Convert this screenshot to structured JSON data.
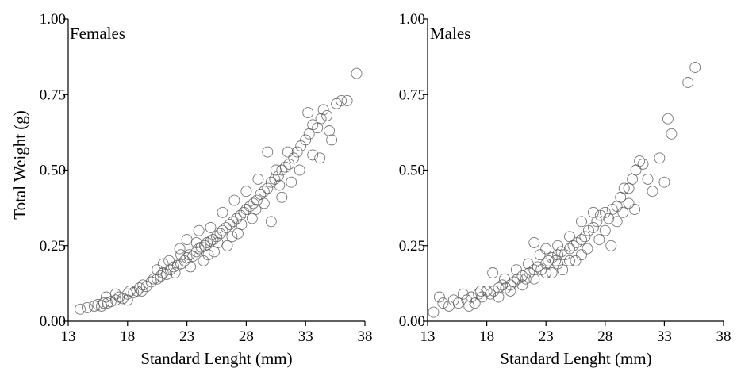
{
  "chart_data": [
    {
      "type": "scatter",
      "panel_label": "Females",
      "xlabel": "Standard Lenght (mm)",
      "ylabel": "Total Weight (g)",
      "xlim": [
        13,
        38
      ],
      "ylim": [
        0,
        1
      ],
      "xticks": [
        13,
        18,
        23,
        28,
        33,
        38
      ],
      "yticks": [
        "0.00",
        "0.25",
        "0.50",
        "0.75",
        "1.00"
      ],
      "ytick_values": [
        0,
        0.25,
        0.5,
        0.75,
        1.0
      ],
      "marker": "open-circle",
      "points": [
        [
          14.0,
          0.04
        ],
        [
          14.6,
          0.045
        ],
        [
          15.2,
          0.05
        ],
        [
          15.5,
          0.055
        ],
        [
          15.8,
          0.05
        ],
        [
          16.0,
          0.06
        ],
        [
          16.3,
          0.06
        ],
        [
          16.6,
          0.065
        ],
        [
          17.0,
          0.07
        ],
        [
          17.3,
          0.08
        ],
        [
          17.6,
          0.075
        ],
        [
          18.0,
          0.09
        ],
        [
          18.2,
          0.1
        ],
        [
          18.5,
          0.095
        ],
        [
          18.8,
          0.1
        ],
        [
          19.0,
          0.11
        ],
        [
          19.3,
          0.12
        ],
        [
          19.6,
          0.115
        ],
        [
          20.0,
          0.13
        ],
        [
          20.2,
          0.14
        ],
        [
          20.5,
          0.14
        ],
        [
          20.8,
          0.15
        ],
        [
          21.0,
          0.16
        ],
        [
          21.3,
          0.155
        ],
        [
          21.6,
          0.17
        ],
        [
          21.9,
          0.18
        ],
        [
          22.2,
          0.185
        ],
        [
          22.5,
          0.19
        ],
        [
          22.8,
          0.2
        ],
        [
          23.0,
          0.21
        ],
        [
          23.2,
          0.22
        ],
        [
          23.5,
          0.215
        ],
        [
          23.8,
          0.23
        ],
        [
          24.0,
          0.24
        ],
        [
          24.2,
          0.245
        ],
        [
          24.5,
          0.25
        ],
        [
          24.7,
          0.26
        ],
        [
          25.0,
          0.265
        ],
        [
          25.2,
          0.27
        ],
        [
          25.5,
          0.28
        ],
        [
          25.8,
          0.29
        ],
        [
          26.0,
          0.3
        ],
        [
          26.3,
          0.31
        ],
        [
          26.6,
          0.32
        ],
        [
          26.9,
          0.33
        ],
        [
          27.2,
          0.34
        ],
        [
          27.5,
          0.35
        ],
        [
          27.8,
          0.36
        ],
        [
          28.0,
          0.37
        ],
        [
          28.3,
          0.38
        ],
        [
          28.6,
          0.39
        ],
        [
          28.9,
          0.4
        ],
        [
          29.2,
          0.42
        ],
        [
          29.5,
          0.43
        ],
        [
          29.8,
          0.44
        ],
        [
          30.1,
          0.46
        ],
        [
          30.4,
          0.47
        ],
        [
          30.7,
          0.48
        ],
        [
          31.0,
          0.5
        ],
        [
          31.3,
          0.51
        ],
        [
          31.6,
          0.52
        ],
        [
          32.0,
          0.54
        ],
        [
          32.3,
          0.56
        ],
        [
          32.6,
          0.58
        ],
        [
          33.0,
          0.6
        ],
        [
          33.3,
          0.62
        ],
        [
          33.6,
          0.65
        ],
        [
          34.0,
          0.64
        ],
        [
          34.3,
          0.67
        ],
        [
          34.5,
          0.7
        ],
        [
          34.8,
          0.68
        ],
        [
          35.2,
          0.6
        ],
        [
          35.6,
          0.72
        ],
        [
          36.0,
          0.73
        ],
        [
          36.5,
          0.73
        ],
        [
          37.3,
          0.82
        ],
        [
          16.2,
          0.08
        ],
        [
          17.0,
          0.09
        ],
        [
          18.0,
          0.07
        ],
        [
          19.2,
          0.1
        ],
        [
          20.5,
          0.17
        ],
        [
          21.0,
          0.19
        ],
        [
          22.0,
          0.16
        ],
        [
          22.4,
          0.24
        ],
        [
          23.0,
          0.27
        ],
        [
          23.3,
          0.18
        ],
        [
          24.0,
          0.3
        ],
        [
          24.4,
          0.2
        ],
        [
          25.0,
          0.31
        ],
        [
          25.3,
          0.23
        ],
        [
          26.0,
          0.36
        ],
        [
          26.4,
          0.25
        ],
        [
          27.0,
          0.4
        ],
        [
          27.3,
          0.29
        ],
        [
          28.0,
          0.43
        ],
        [
          28.5,
          0.34
        ],
        [
          29.0,
          0.47
        ],
        [
          29.8,
          0.56
        ],
        [
          30.1,
          0.33
        ],
        [
          30.5,
          0.5
        ],
        [
          31.0,
          0.41
        ],
        [
          31.5,
          0.56
        ],
        [
          31.8,
          0.46
        ],
        [
          32.5,
          0.5
        ],
        [
          33.2,
          0.69
        ],
        [
          33.6,
          0.55
        ],
        [
          34.2,
          0.54
        ],
        [
          35.0,
          0.63
        ],
        [
          21.5,
          0.2
        ],
        [
          22.5,
          0.22
        ],
        [
          23.8,
          0.26
        ],
        [
          24.8,
          0.22
        ],
        [
          25.6,
          0.26
        ],
        [
          26.8,
          0.28
        ],
        [
          27.6,
          0.32
        ],
        [
          28.8,
          0.37
        ],
        [
          29.5,
          0.39
        ],
        [
          30.8,
          0.45
        ]
      ]
    },
    {
      "type": "scatter",
      "panel_label": "Males",
      "xlabel": "Standard Lenght (mm)",
      "ylabel": "",
      "xlim": [
        13,
        38
      ],
      "ylim": [
        0,
        1
      ],
      "xticks": [
        13,
        18,
        23,
        28,
        33,
        38
      ],
      "yticks": [
        "0.00",
        "0.25",
        "0.50",
        "0.75",
        "1.00"
      ],
      "ytick_values": [
        0,
        0.25,
        0.5,
        0.75,
        1.0
      ],
      "marker": "open-circle",
      "points": [
        [
          13.5,
          0.03
        ],
        [
          14.0,
          0.08
        ],
        [
          14.3,
          0.06
        ],
        [
          14.8,
          0.05
        ],
        [
          15.2,
          0.07
        ],
        [
          15.6,
          0.06
        ],
        [
          16.0,
          0.09
        ],
        [
          16.3,
          0.07
        ],
        [
          16.7,
          0.08
        ],
        [
          17.0,
          0.06
        ],
        [
          17.3,
          0.09
        ],
        [
          17.6,
          0.08
        ],
        [
          18.0,
          0.1
        ],
        [
          18.3,
          0.09
        ],
        [
          18.6,
          0.1
        ],
        [
          19.0,
          0.11
        ],
        [
          19.3,
          0.12
        ],
        [
          19.6,
          0.11
        ],
        [
          20.0,
          0.12
        ],
        [
          20.3,
          0.13
        ],
        [
          20.6,
          0.14
        ],
        [
          21.0,
          0.15
        ],
        [
          21.3,
          0.14
        ],
        [
          21.6,
          0.16
        ],
        [
          22.0,
          0.17
        ],
        [
          22.3,
          0.18
        ],
        [
          22.6,
          0.17
        ],
        [
          23.0,
          0.19
        ],
        [
          23.2,
          0.2
        ],
        [
          23.5,
          0.21
        ],
        [
          23.8,
          0.2
        ],
        [
          24.0,
          0.22
        ],
        [
          24.3,
          0.23
        ],
        [
          24.6,
          0.22
        ],
        [
          25.0,
          0.24
        ],
        [
          25.3,
          0.25
        ],
        [
          25.6,
          0.26
        ],
        [
          26.0,
          0.27
        ],
        [
          26.3,
          0.28
        ],
        [
          26.6,
          0.3
        ],
        [
          27.0,
          0.31
        ],
        [
          27.3,
          0.33
        ],
        [
          27.6,
          0.35
        ],
        [
          28.0,
          0.36
        ],
        [
          28.3,
          0.34
        ],
        [
          28.6,
          0.37
        ],
        [
          29.0,
          0.38
        ],
        [
          29.3,
          0.41
        ],
        [
          29.6,
          0.44
        ],
        [
          30.0,
          0.44
        ],
        [
          30.3,
          0.47
        ],
        [
          30.6,
          0.5
        ],
        [
          30.9,
          0.53
        ],
        [
          31.2,
          0.52
        ],
        [
          31.6,
          0.47
        ],
        [
          32.0,
          0.43
        ],
        [
          32.6,
          0.54
        ],
        [
          33.0,
          0.46
        ],
        [
          33.3,
          0.67
        ],
        [
          33.6,
          0.62
        ],
        [
          35.0,
          0.79
        ],
        [
          35.6,
          0.84
        ],
        [
          18.5,
          0.16
        ],
        [
          19.5,
          0.14
        ],
        [
          20.5,
          0.17
        ],
        [
          21.5,
          0.19
        ],
        [
          22.0,
          0.26
        ],
        [
          22.5,
          0.22
        ],
        [
          23.0,
          0.24
        ],
        [
          23.5,
          0.16
        ],
        [
          24.0,
          0.25
        ],
        [
          24.4,
          0.17
        ],
        [
          25.0,
          0.28
        ],
        [
          25.5,
          0.2
        ],
        [
          26.0,
          0.33
        ],
        [
          26.5,
          0.24
        ],
        [
          27.0,
          0.36
        ],
        [
          27.5,
          0.27
        ],
        [
          28.0,
          0.3
        ],
        [
          28.5,
          0.25
        ],
        [
          29.0,
          0.33
        ],
        [
          29.5,
          0.36
        ],
        [
          30.0,
          0.39
        ],
        [
          30.5,
          0.37
        ],
        [
          16.5,
          0.05
        ],
        [
          17.5,
          0.1
        ],
        [
          19.0,
          0.08
        ],
        [
          20.0,
          0.1
        ],
        [
          21.0,
          0.12
        ],
        [
          22.0,
          0.14
        ],
        [
          23.0,
          0.16
        ],
        [
          24.0,
          0.19
        ],
        [
          25.0,
          0.2
        ],
        [
          26.0,
          0.22
        ]
      ]
    }
  ]
}
